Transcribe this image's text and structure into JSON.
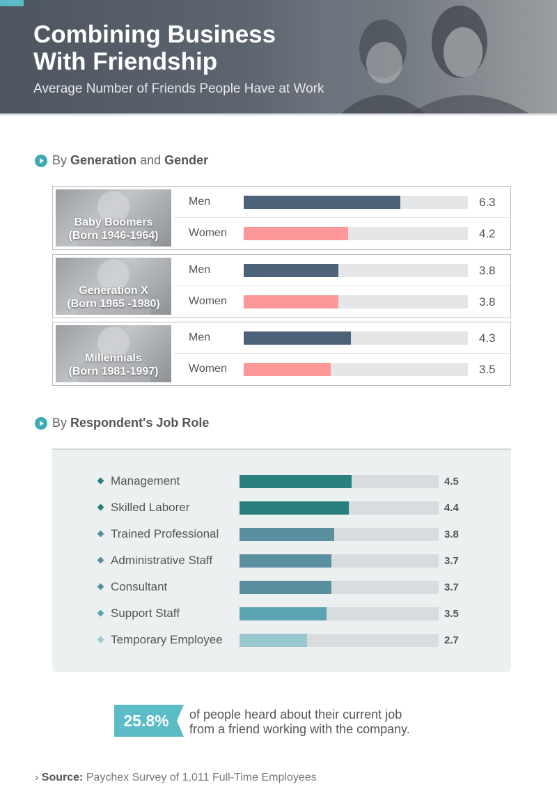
{
  "header": {
    "title": "Combining Business With Friendship",
    "subtitle": "Average Number of Friends People Have at Work"
  },
  "sections": {
    "generation": {
      "prefix": "By",
      "bold1": "Generation",
      "mid": "and",
      "bold2": "Gender"
    },
    "job": {
      "prefix": "By",
      "bold1": "Respondent's Job Role"
    }
  },
  "colors": {
    "men": "#4c6278",
    "women": "#fc9898",
    "teal": "#3aaab8"
  },
  "chart_data": [
    {
      "type": "bar",
      "groups": [
        {
          "name": "Baby Boomers",
          "born": "(Born 1946-1964)"
        },
        {
          "name": "Generation X",
          "born": "(Born 1965 -1980)"
        },
        {
          "name": "Millennials",
          "born": "(Born 1981-1997)"
        }
      ],
      "categories": [
        "Men",
        "Women"
      ],
      "series": [
        {
          "values": [
            6.3,
            4.2
          ]
        },
        {
          "values": [
            3.8,
            3.8
          ]
        },
        {
          "values": [
            4.3,
            3.5
          ]
        }
      ],
      "xlim": [
        0,
        9
      ],
      "value_labels": [
        [
          "6.3",
          "4.2"
        ],
        [
          "3.8",
          "3.8"
        ],
        [
          "4.3",
          "3.5"
        ]
      ]
    },
    {
      "type": "bar",
      "categories": [
        "Management",
        "Skilled Laborer",
        "Trained Professional",
        "Administrative Staff",
        "Consultant",
        "Support Staff",
        "Temporary Employee"
      ],
      "values": [
        4.5,
        4.4,
        3.8,
        3.7,
        3.7,
        3.5,
        2.7
      ],
      "value_labels": [
        "4.5",
        "4.4",
        "3.8",
        "3.7",
        "3.7",
        "3.5",
        "2.7"
      ],
      "bar_colors": [
        "#2a7f7f",
        "#2a7f7f",
        "#5a8f9f",
        "#5a8f9f",
        "#5a8f9f",
        "#5ca4b4",
        "#9ac8d0"
      ],
      "xlim": [
        0,
        8
      ]
    }
  ],
  "stat": {
    "value": "25.8%",
    "line1": "of people heard about their current job",
    "line2": "from a friend working with the company."
  },
  "source": {
    "label": "Source:",
    "text": "Paychex Survey of 1,011 Full-Time Employees"
  }
}
